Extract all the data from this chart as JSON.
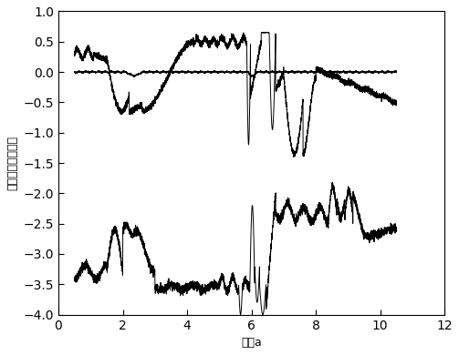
{
  "xlim": [
    0,
    12
  ],
  "ylim": [
    -4,
    1
  ],
  "yticks": [
    1,
    0.5,
    0,
    -0.5,
    -1,
    -1.5,
    -2,
    -2.5,
    -3,
    -3.5,
    -4
  ],
  "xticks": [
    0,
    2,
    4,
    6,
    8,
    10,
    12
  ],
  "xlabel": "参数a",
  "ylabel": "抵抗局部入口效能",
  "line_color": "#000000",
  "bg_color": "#ffffff",
  "seed": 42
}
